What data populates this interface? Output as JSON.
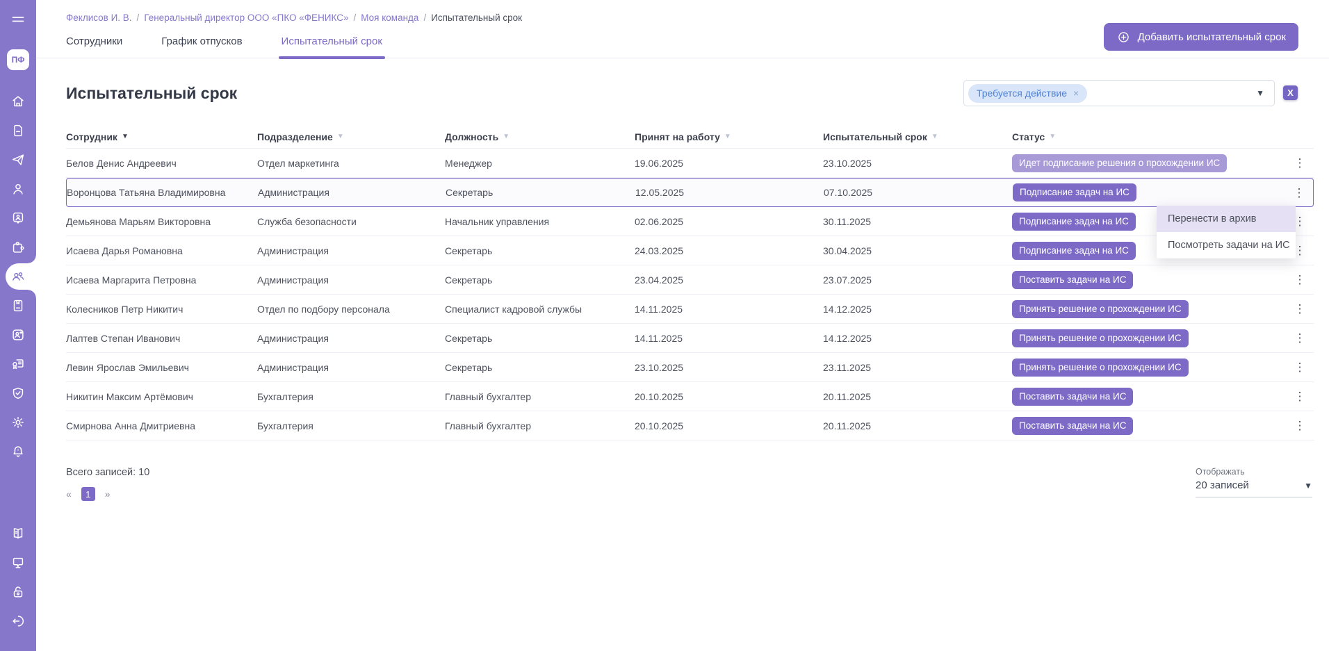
{
  "sidebar": {
    "logo_text": "ПФ",
    "icons": [
      "menu",
      "home",
      "document",
      "send",
      "user",
      "id-badge",
      "puzzle",
      "team",
      "notebook",
      "user-add",
      "certificate",
      "shield-check",
      "settings",
      "notifications",
      "handbook",
      "support",
      "lock",
      "logout"
    ],
    "active_icon": "team"
  },
  "breadcrumb": {
    "items": [
      "Феклисов И. В.",
      "Генеральный директор ООО «ПКО «ФЕНИКС»",
      "Моя команда",
      "Испытательный срок"
    ],
    "separator": "/"
  },
  "tabs": [
    {
      "label": "Сотрудники",
      "active": false
    },
    {
      "label": "График отпусков",
      "active": false
    },
    {
      "label": "Испытательный срок",
      "active": true
    }
  ],
  "toolbar": {
    "add_button_label": "Добавить испытательный срок"
  },
  "page_title": "Испытательный срок",
  "filter": {
    "chip_label": "Требуется действие",
    "chip_remove": "×"
  },
  "export": {
    "excel_letter": "X"
  },
  "table": {
    "columns": [
      {
        "label": "Сотрудник",
        "sort_arrow": "dark"
      },
      {
        "label": "Подразделение",
        "sort_arrow": "light"
      },
      {
        "label": "Должность",
        "sort_arrow": "light"
      },
      {
        "label": "Принят на работу",
        "sort_arrow": "light"
      },
      {
        "label": "Испытательный срок",
        "sort_arrow": "light"
      },
      {
        "label": "Статус",
        "sort_arrow": "light"
      }
    ],
    "row_menu_icon": "⋮",
    "rows": [
      {
        "employee": "Белов Денис Андреевич",
        "department": "Отдел маркетинга",
        "position": "Менеджер",
        "hired_date": "19.06.2025",
        "probation_date": "23.10.2025",
        "status": "Идет подписание решения о прохождении ИС",
        "status_variant": "light",
        "selected": false
      },
      {
        "employee": "Воронцова Татьяна Владимировна",
        "department": "Администрация",
        "position": "Секретарь",
        "hired_date": "12.05.2025",
        "probation_date": "07.10.2025",
        "status": "Подписание задач на ИС",
        "status_variant": "dark",
        "selected": true
      },
      {
        "employee": "Демьянова Марьям Викторовна",
        "department": "Служба безопасности",
        "position": "Начальник управления",
        "hired_date": "02.06.2025",
        "probation_date": "30.11.2025",
        "status": "Подписание задач на ИС",
        "status_variant": "dark",
        "selected": false
      },
      {
        "employee": "Исаева Дарья Романовна",
        "department": "Администрация",
        "position": "Секретарь",
        "hired_date": "24.03.2025",
        "probation_date": "30.04.2025",
        "status": "Подписание задач на ИС",
        "status_variant": "dark",
        "selected": false
      },
      {
        "employee": "Исаева Маргарита Петровна",
        "department": "Администрация",
        "position": "Секретарь",
        "hired_date": "23.04.2025",
        "probation_date": "23.07.2025",
        "status": "Поставить задачи на ИС",
        "status_variant": "dark",
        "selected": false
      },
      {
        "employee": "Колесников Петр Никитич",
        "department": "Отдел по подбору персонала",
        "position": "Специалист кадровой службы",
        "hired_date": "14.11.2025",
        "probation_date": "14.12.2025",
        "status": "Принять решение о прохождении ИС",
        "status_variant": "dark",
        "selected": false
      },
      {
        "employee": "Лаптев Степан Иванович",
        "department": "Администрация",
        "position": "Секретарь",
        "hired_date": "14.11.2025",
        "probation_date": "14.12.2025",
        "status": "Принять решение о прохождении ИС",
        "status_variant": "dark",
        "selected": false
      },
      {
        "employee": "Левин Ярослав Эмильевич",
        "department": "Администрация",
        "position": "Секретарь",
        "hired_date": "23.10.2025",
        "probation_date": "23.11.2025",
        "status": "Принять решение о прохождении ИС",
        "status_variant": "dark",
        "selected": false
      },
      {
        "employee": "Никитин Максим Артёмович",
        "department": "Бухгалтерия",
        "position": "Главный бухгалтер",
        "hired_date": "20.10.2025",
        "probation_date": "20.11.2025",
        "status": "Поставить задачи на ИС",
        "status_variant": "dark",
        "selected": false
      },
      {
        "employee": "Смирнова Анна Дмитриевна",
        "department": "Бухгалтерия",
        "position": "Главный бухгалтер",
        "hired_date": "20.10.2025",
        "probation_date": "20.11.2025",
        "status": "Поставить задачи на ИС",
        "status_variant": "dark",
        "selected": false
      }
    ]
  },
  "context_menu": {
    "items": [
      {
        "label": "Перенести в архив",
        "highlighted": true
      },
      {
        "label": "Посмотреть задачи на ИС",
        "highlighted": false
      }
    ]
  },
  "footer": {
    "total_label": "Всего записей: 10",
    "pagination": {
      "prev": "«",
      "current_page": "1",
      "next": "»"
    },
    "per_page_label": "Отображать",
    "per_page_value": "20 записей"
  },
  "colors": {
    "sidebar": "#8677cb",
    "accent": "#7d6ac7",
    "badge_light": "#a89ad7",
    "menu_highlight": "#e6e0f5",
    "chip_bg": "#d9e5f8",
    "chip_text": "#4e82d6"
  }
}
